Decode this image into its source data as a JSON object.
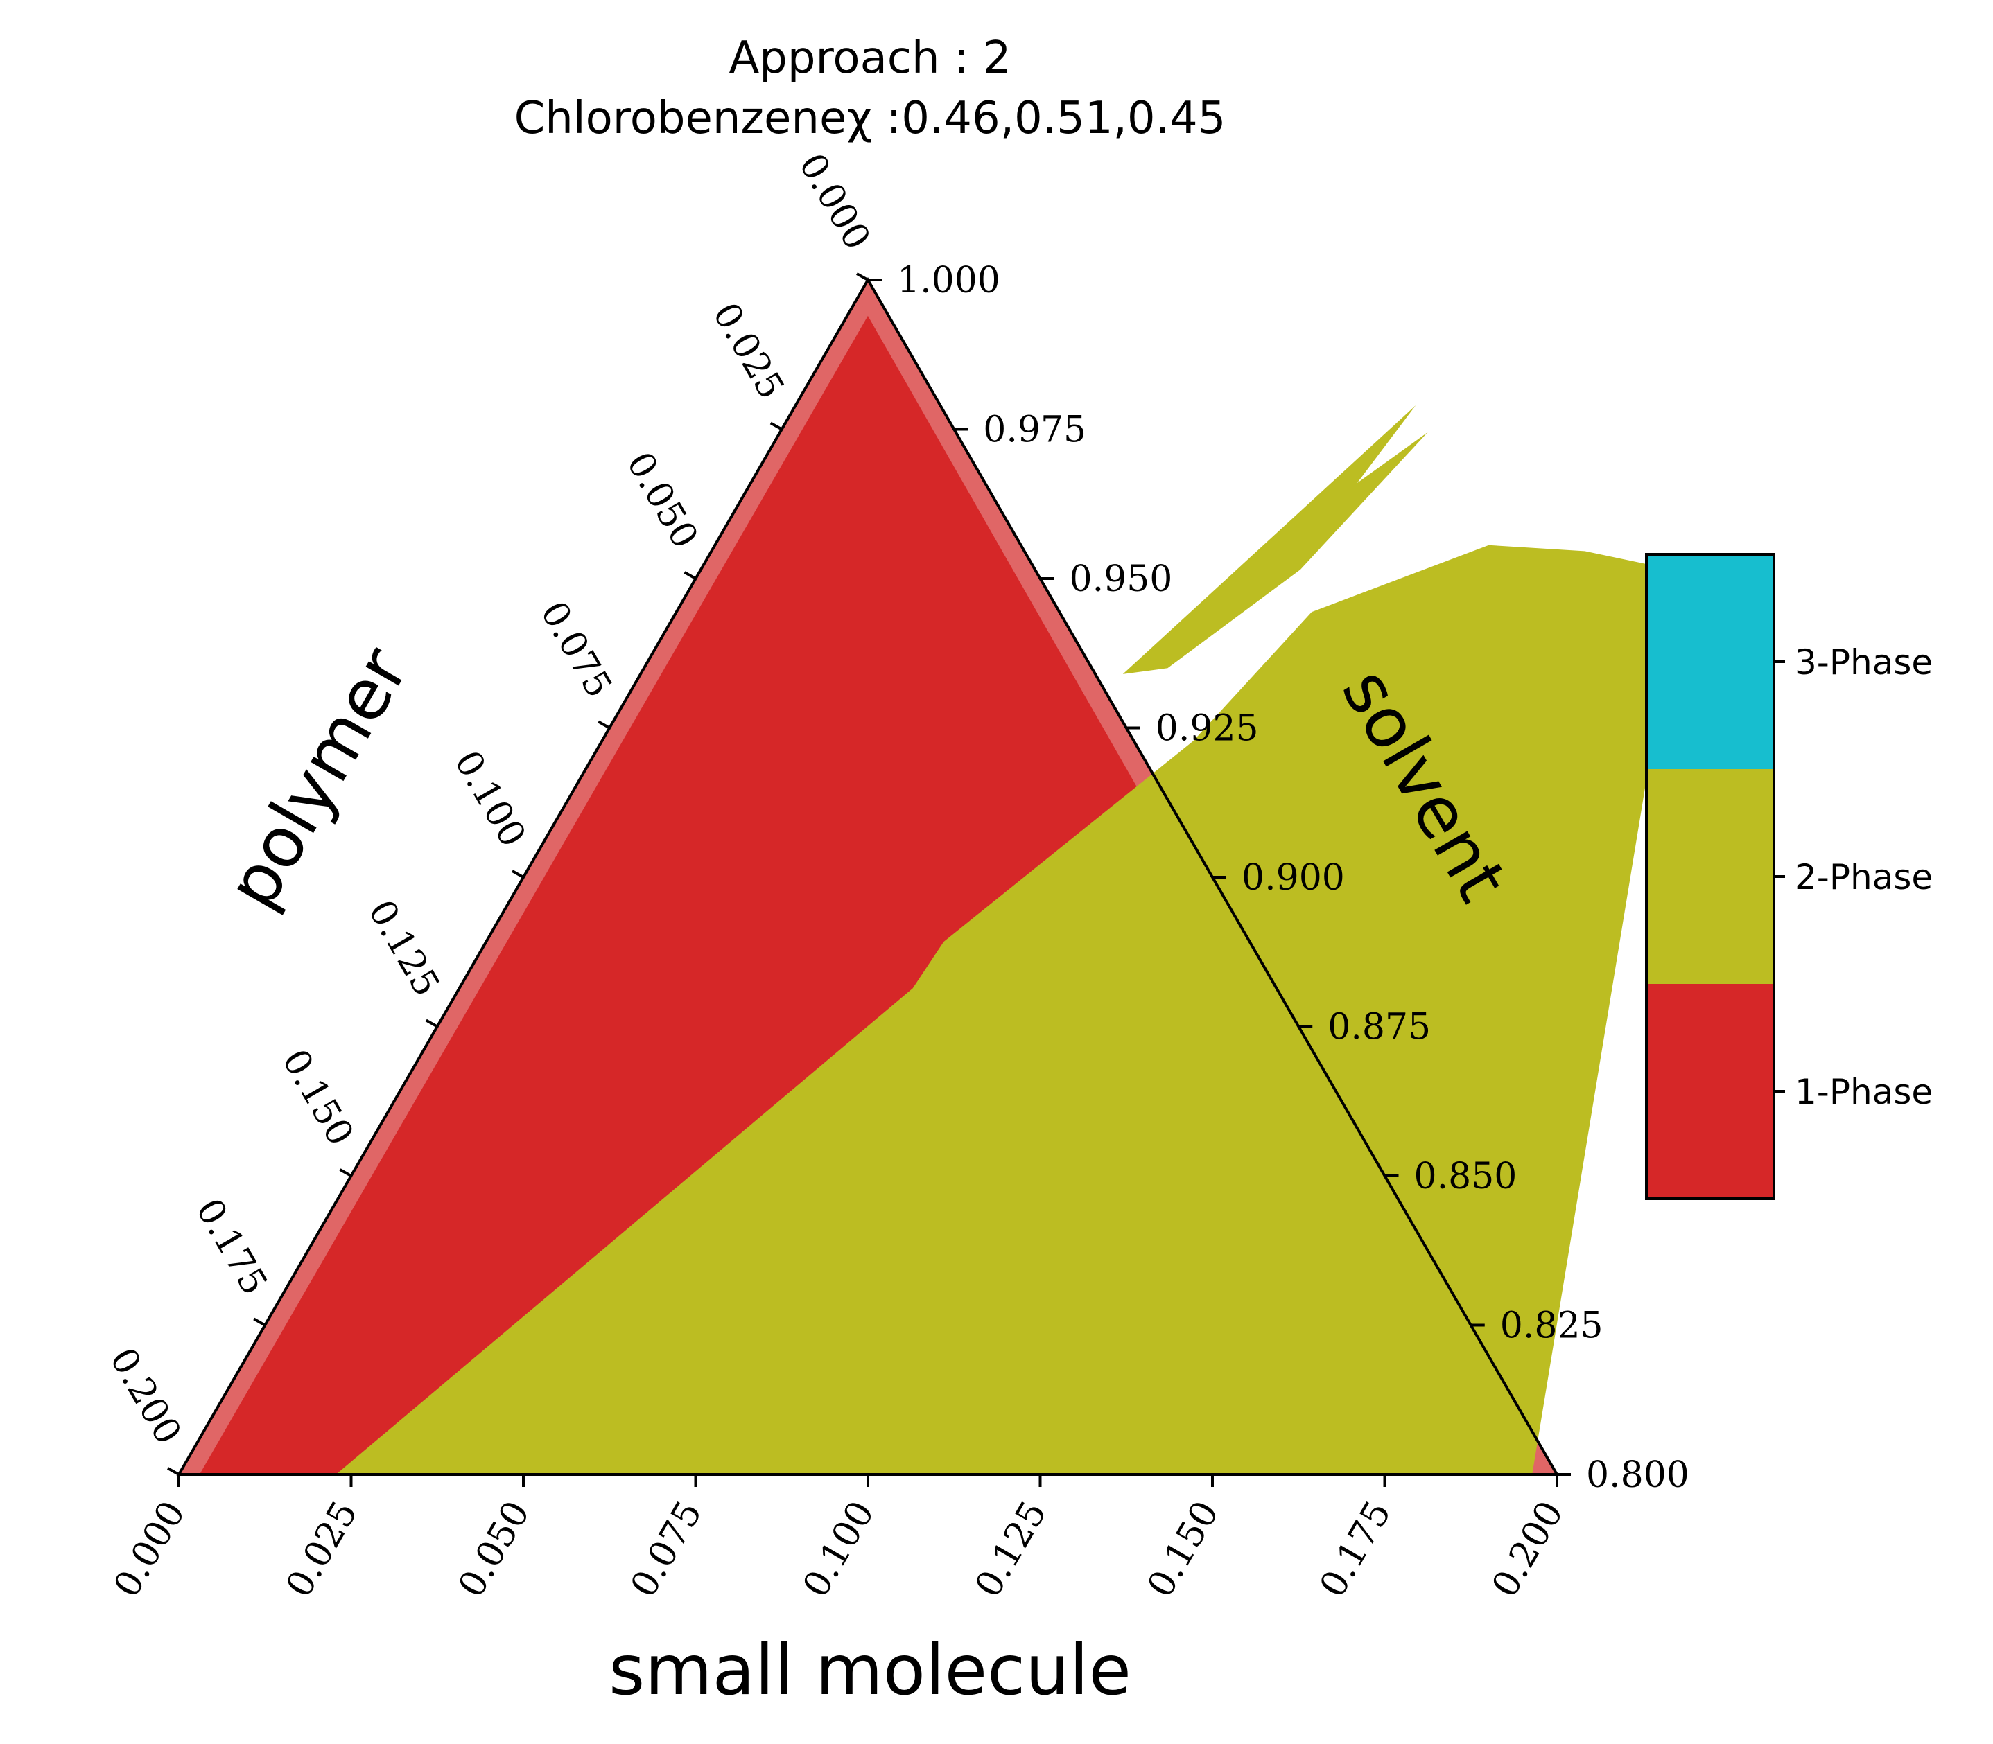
{
  "chart_data": {
    "type": "ternary",
    "title": [
      "Approach : 2",
      "Chlorobenzeneχ :0.46,0.51,0.45"
    ],
    "axes": {
      "bottom": {
        "label": "small molecule",
        "ticks": [
          "0.000",
          "0.025",
          "0.050",
          "0.075",
          "0.100",
          "0.125",
          "0.150",
          "0.175",
          "0.200"
        ],
        "range": [
          0,
          0.2
        ]
      },
      "left": {
        "label": "polymer",
        "ticks": [
          "0.000",
          "0.025",
          "0.050",
          "0.075",
          "0.100",
          "0.125",
          "0.150",
          "0.175",
          "0.200"
        ],
        "range": [
          0,
          0.2
        ]
      },
      "right": {
        "label": "solvent",
        "ticks": [
          "1.000",
          "0.975",
          "0.950",
          "0.925",
          "0.900",
          "0.875",
          "0.850",
          "0.825",
          "0.800"
        ],
        "range": [
          0.8,
          1.0
        ]
      }
    },
    "colorbar": {
      "entries": [
        {
          "label": "3-Phase",
          "color": "#17becf"
        },
        {
          "label": "2-Phase",
          "color": "#bcbd22"
        },
        {
          "label": "1-Phase",
          "color": "#d62728"
        }
      ]
    },
    "colors": {
      "one_phase": "#d62728",
      "two_phase": "#bcbd22",
      "three_phase": "#17becf",
      "edge_band": "#e06666"
    },
    "regions": {
      "two_phase_main_boundary": [
        {
          "small_molecule": 0.0228,
          "polymer": 0.0
        },
        {
          "small_molecule": 0.0658,
          "polymer": 0.0814
        },
        {
          "small_molecule": 0.0664,
          "polymer": 0.0892
        },
        {
          "small_molecule": 0.0858,
          "polymer": 0.1228
        },
        {
          "small_molecule": 0.0922,
          "polymer": 0.1444
        },
        {
          "small_molecule": 0.1123,
          "polymer": 0.1556
        },
        {
          "small_molecule": 0.1267,
          "polymer": 0.1546
        },
        {
          "small_molecule": 0.1397,
          "polymer": 0.1518
        },
        {
          "small_molecule": 0.1432,
          "polymer": 0.1488
        },
        {
          "small_molecule": 0.1964,
          "polymer": 0.0
        }
      ],
      "two_phase_upper_sliver": [
        {
          "small_molecule": 0.07,
          "polymer": 0.134
        },
        {
          "small_molecule": 0.09,
          "polymer": 0.179
        },
        {
          "small_molecule": 0.088,
          "polymer": 0.166
        },
        {
          "small_molecule": 0.094,
          "polymer": 0.1745
        },
        {
          "small_molecule": 0.087,
          "polymer": 0.1515
        },
        {
          "small_molecule": 0.076,
          "polymer": 0.135
        }
      ]
    }
  }
}
